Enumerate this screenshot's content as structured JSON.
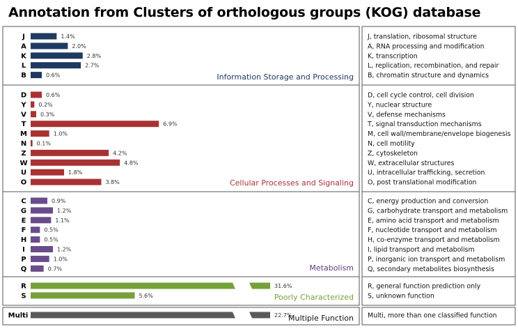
{
  "title": "Annotation from Clusters of orthologous groups (KOG) database",
  "chart_data": {
    "type": "bar",
    "orientation": "horizontal",
    "title": "Annotation from Clusters of orthologous groups (KOG) database",
    "value_unit": "%",
    "axis_break": true,
    "groups": [
      {
        "name": "Information Storage and Processing",
        "color": "#1f3a60",
        "name_color": "#1f3a60",
        "items": [
          {
            "code": "J",
            "value": 1.4,
            "label": "1.4%",
            "description": "J, translation, ribosomal structure"
          },
          {
            "code": "A",
            "value": 2.0,
            "label": "2.0%",
            "description": "A, RNA processing and modification"
          },
          {
            "code": "K",
            "value": 2.8,
            "label": "2.8%",
            "description": "K, transcription"
          },
          {
            "code": "L",
            "value": 2.7,
            "label": "2.7%",
            "description": "L, replication, recombination, and repair"
          },
          {
            "code": "B",
            "value": 0.6,
            "label": "0.6%",
            "description": "B, chromatin structure and dynamics"
          }
        ]
      },
      {
        "name": "Cellular Processes and Signaling",
        "color": "#a83232",
        "name_color": "#a83232",
        "items": [
          {
            "code": "D",
            "value": 0.6,
            "label": "0.6%",
            "description": "D, cell cycle control, cell division"
          },
          {
            "code": "Y",
            "value": 0.2,
            "label": "0.2%",
            "description": "Y, nuclear structure"
          },
          {
            "code": "V",
            "value": 0.3,
            "label": "0.3%",
            "description": "V, defense mechanisms"
          },
          {
            "code": "T",
            "value": 6.9,
            "label": "6.9%",
            "description": "T, signal transduction mechanisms"
          },
          {
            "code": "M",
            "value": 1.0,
            "label": "1.0%",
            "description": "M, cell wall/membrane/envelope biogenesis"
          },
          {
            "code": "N",
            "value": 0.1,
            "label": "0.1%",
            "description": "N, cell motility"
          },
          {
            "code": "Z",
            "value": 4.2,
            "label": "4.2%",
            "description": "Z, cytoskeleton"
          },
          {
            "code": "W",
            "value": 4.8,
            "label": "4.8%",
            "description": "W, extracellular structures"
          },
          {
            "code": "U",
            "value": 1.8,
            "label": "1.8%",
            "description": "U, intracellular trafficking, secretion"
          },
          {
            "code": "O",
            "value": 3.8,
            "label": "3.8%",
            "description": "O, post translational modification"
          }
        ]
      },
      {
        "name": "Metabolism",
        "color": "#6a4c8c",
        "name_color": "#5c3d80",
        "items": [
          {
            "code": "C",
            "value": 0.9,
            "label": "0.9%",
            "description": "C, energy production and conversion"
          },
          {
            "code": "G",
            "value": 1.2,
            "label": "1.2%",
            "description": "G, carbohydrate transport and metabolism"
          },
          {
            "code": "E",
            "value": 1.1,
            "label": "1.1%",
            "description": "E, amino acid transport and metabolism"
          },
          {
            "code": "F",
            "value": 0.5,
            "label": "0.5%",
            "description": "F, nucleotide transport and metabolism"
          },
          {
            "code": "H",
            "value": 0.5,
            "label": "0.5%",
            "description": "H, co-enzyme transport and metabolism"
          },
          {
            "code": "I",
            "value": 1.2,
            "label": "1.2%",
            "description": "I, lipid transport and metabolism"
          },
          {
            "code": "P",
            "value": 1.0,
            "label": "1.0%",
            "description": "P, inorganic ion transport and metabolism"
          },
          {
            "code": "Q",
            "value": 0.7,
            "label": "0.7%",
            "description": "Q, secondary metabolites biosynthesis"
          }
        ]
      },
      {
        "name": "Poorly Characterized",
        "color": "#76a03a",
        "name_color": "#76a03a",
        "items": [
          {
            "code": "R",
            "value": 31.6,
            "label": "31.6%",
            "description": "R, general function prediction only"
          },
          {
            "code": "S",
            "value": 5.6,
            "label": "5.6%",
            "description": "S, unknown function"
          }
        ]
      },
      {
        "name": "Multiple Function",
        "color": "#595959",
        "name_color": "#111111",
        "items": [
          {
            "code": "Multi",
            "value": 22.7,
            "label": "22.7%",
            "description": "Multi, more than one classified function"
          }
        ]
      }
    ]
  }
}
